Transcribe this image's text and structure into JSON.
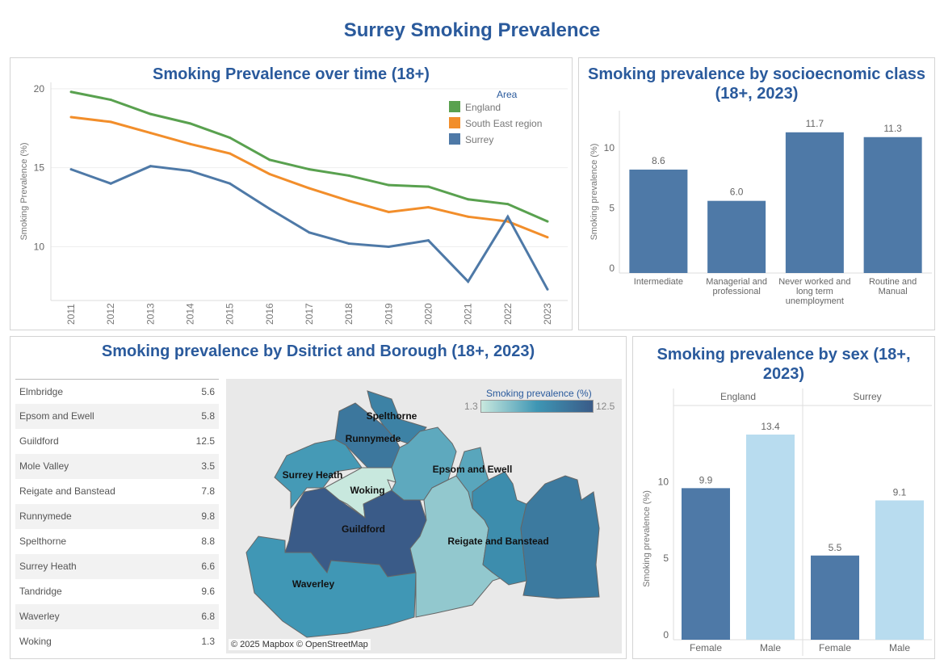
{
  "title": "Surrey Smoking Prevalence",
  "colors": {
    "england": "#59a14f",
    "south_east": "#f28e2b",
    "surrey": "#4e79a7",
    "male": "#b8dcef",
    "map_low": "#c8e8de",
    "map_high": "#3a5b88"
  },
  "chart_data": [
    {
      "type": "line",
      "title": "Smoking Prevalence over time (18+)",
      "ylabel": "Smoking Prevalence (%)",
      "legend_title": "Area",
      "legend_position": "top-right",
      "ylim": [
        6.6,
        20.4
      ],
      "yticks": [
        10,
        15,
        20
      ],
      "grid": true,
      "x": [
        "2011",
        "2012",
        "2013",
        "2014",
        "2015",
        "2016",
        "2017",
        "2018",
        "2019",
        "2020",
        "2021",
        "2022",
        "2023"
      ],
      "series": [
        {
          "name": "England",
          "values": [
            19.8,
            19.3,
            18.4,
            17.8,
            16.9,
            15.5,
            14.9,
            14.5,
            13.9,
            13.8,
            13.0,
            12.7,
            11.6
          ]
        },
        {
          "name": "South East region",
          "values": [
            18.2,
            17.9,
            17.2,
            16.5,
            15.9,
            14.6,
            13.7,
            12.9,
            12.2,
            12.5,
            11.9,
            11.6,
            10.6
          ]
        },
        {
          "name": "Surrey",
          "values": [
            14.9,
            14.0,
            15.1,
            14.8,
            14.0,
            12.4,
            10.9,
            10.2,
            10.0,
            10.4,
            7.8,
            11.9,
            7.3
          ]
        }
      ]
    },
    {
      "type": "bar",
      "title": "Smoking prevalence by socioecnomic class (18+, 2023)",
      "ylabel": "Smoking prevalence (%)",
      "yticks": [
        0,
        5,
        10
      ],
      "ylim": [
        0,
        13.5
      ],
      "categories": [
        "Intermediate",
        "Managerial and professional",
        "Never worked and long term unemployment",
        "Routine and Manual"
      ],
      "category_lines": [
        [
          "Intermediate"
        ],
        [
          "Managerial and",
          "professional"
        ],
        [
          "Never worked and",
          "long term",
          "unemployment"
        ],
        [
          "Routine and",
          "Manual"
        ]
      ],
      "values": [
        8.6,
        6.0,
        11.7,
        11.3
      ],
      "labels": [
        "8.6",
        "6.0",
        "11.7",
        "11.3"
      ]
    },
    {
      "type": "table",
      "title": "Smoking prevalence by Dsitrict and Borough (18+, 2023)",
      "rows": [
        [
          "Elmbridge",
          "5.6"
        ],
        [
          "Epsom and Ewell",
          "5.8"
        ],
        [
          "Guildford",
          "12.5"
        ],
        [
          "Mole Valley",
          "3.5"
        ],
        [
          "Reigate and Banstead",
          "7.8"
        ],
        [
          "Runnymede",
          "9.8"
        ],
        [
          "Spelthorne",
          "8.8"
        ],
        [
          "Surrey Heath",
          "6.6"
        ],
        [
          "Tandridge",
          "9.6"
        ],
        [
          "Waverley",
          "6.8"
        ],
        [
          "Woking",
          "1.3"
        ]
      ],
      "map_legend": {
        "title": "Smoking prevalence (%)",
        "min": "1.3",
        "max": "12.5"
      },
      "map_labels": [
        "Spelthorne",
        "Runnymede",
        "Surrey Heath",
        "Woking",
        "Epsom and Ewell",
        "Guildford",
        "Reigate and Banstead",
        "Waverley"
      ],
      "attribution": "© 2025 Mapbox © OpenStreetMap"
    },
    {
      "type": "bar",
      "title": "Smoking prevalence by sex (18+, 2023)",
      "ylabel": "Smoking prevalence (%)",
      "yticks": [
        0,
        5,
        10
      ],
      "ylim": [
        0,
        15.3
      ],
      "groups": [
        "England",
        "Surrey"
      ],
      "categories": [
        "Female",
        "Male"
      ],
      "series": [
        {
          "group": "England",
          "values": [
            9.9,
            13.4
          ],
          "labels": [
            "9.9",
            "13.4"
          ]
        },
        {
          "group": "Surrey",
          "values": [
            5.5,
            9.1
          ],
          "labels": [
            "5.5",
            "9.1"
          ]
        }
      ]
    }
  ]
}
